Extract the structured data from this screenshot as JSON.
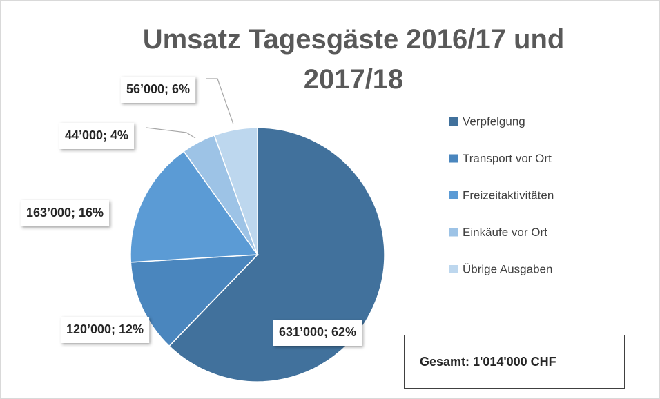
{
  "chart_data": {
    "type": "pie",
    "title": "Umsatz Tagesgäste 2016/17 und 2017/18",
    "categories": [
      "Verpfelgung",
      "Transport vor Ort",
      "Freizeitaktivitäten",
      "Einkäufe vor Ort",
      "Übrige Ausgaben"
    ],
    "values": [
      631000,
      120000,
      163000,
      44000,
      56000
    ],
    "value_labels": [
      "631’000; 62%",
      "120’000; 12%",
      "163’000; 16%",
      "44’000; 4%",
      "56’000; 6%"
    ],
    "colors": [
      "#41719c",
      "#4a86be",
      "#5b9bd5",
      "#9dc3e6",
      "#bdd7ee"
    ],
    "legend": "right",
    "annotation": "Gesamt: 1'014'000 CHF"
  }
}
